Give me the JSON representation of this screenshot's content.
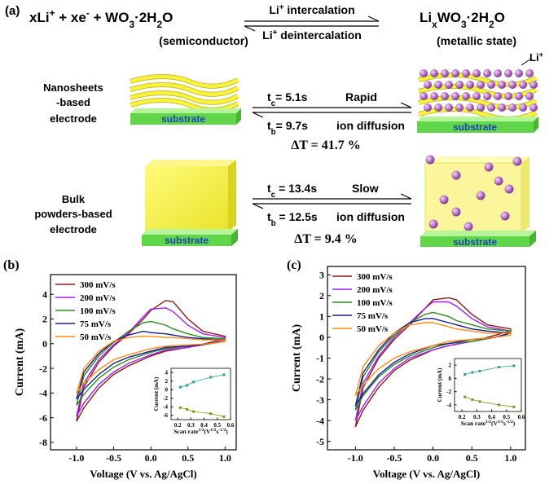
{
  "figure": {
    "panel_a": {
      "label": "(a)",
      "lhs": [
        "xLi",
        "+",
        " + xe",
        "-",
        " + WO",
        "3",
        "·2H",
        "2",
        "O"
      ],
      "lhs_note": "(semiconductor)",
      "forward": [
        "Li",
        "+",
        " intercalation"
      ],
      "backward": [
        "Li",
        "+",
        " deintercalation"
      ],
      "rhs": [
        "Li",
        "x",
        "WO",
        "3",
        "·2H",
        "2",
        "O"
      ],
      "rhs_note": "(metallic state)",
      "ion": [
        "Li",
        "+"
      ],
      "nanosheets": {
        "electrode": [
          "Nanosheets",
          "-based",
          "electrode"
        ],
        "substrate_left": "substrate",
        "substrate_right": "substrate",
        "tc": [
          "t",
          "c",
          "= 5.1s"
        ],
        "speed": "Rapid",
        "tb": [
          "t",
          "b",
          "= 9.7s"
        ],
        "diffusion": "ion diffusion",
        "delta": "ΔT = 41.7 %"
      },
      "bulk": {
        "electrode": [
          "Bulk",
          "powders-based",
          "electrode"
        ],
        "substrate_left": "substrate",
        "substrate_right": "substrate",
        "tc": [
          "t",
          "c",
          " = 13.4s"
        ],
        "speed": "Slow",
        "tb": [
          "t",
          "b",
          " = 12.5s"
        ],
        "diffusion": "ion diffusion",
        "delta": "ΔT = 9.4 %"
      }
    }
  },
  "chart_data": [
    {
      "type": "line",
      "panel": "(b)",
      "xlabel": "Voltage (V vs. Ag/AgCl)",
      "ylabel": "Current  (mA)",
      "xlim": [
        -1.35,
        1.15
      ],
      "ylim": [
        -8.6,
        5.6
      ],
      "xticks": [
        {
          "value": -1,
          "label": "-1.0"
        },
        {
          "value": -0.5,
          "label": "-0.5"
        },
        {
          "value": 0,
          "label": "0.0"
        },
        {
          "value": 0.5,
          "label": "0.5"
        },
        {
          "value": 1,
          "label": "1.0"
        }
      ],
      "yticks": [
        -8,
        -6,
        -4,
        -2,
        0,
        2,
        4
      ],
      "x": [
        -1,
        -0.9,
        -0.7,
        -0.5,
        -0.3,
        -0.1,
        0,
        0.2,
        0.3,
        0.5,
        0.7,
        1,
        1,
        0.8,
        0.5,
        0.2,
        0,
        -0.3,
        -0.5,
        -0.7,
        -0.9,
        -1
      ],
      "series": [
        {
          "name": "300 mV/s",
          "color": "#8b1a1a",
          "values": [
            -6.3,
            -3.5,
            -1.5,
            -0.2,
            0.8,
            2.0,
            2.7,
            3.5,
            3.4,
            2.0,
            1.0,
            0.6,
            0.4,
            0.1,
            -0.3,
            -0.6,
            -1.0,
            -1.8,
            -2.5,
            -3.6,
            -5.2,
            -6.3
          ]
        },
        {
          "name": "200 mV/s",
          "color": "#a020f0",
          "values": [
            -5.9,
            -3.2,
            -1.3,
            -0.1,
            0.9,
            2.2,
            2.8,
            2.9,
            2.6,
            1.5,
            0.8,
            0.5,
            0.3,
            0.0,
            -0.3,
            -0.5,
            -0.9,
            -1.6,
            -2.3,
            -3.3,
            -4.8,
            -5.9
          ]
        },
        {
          "name": "100 mV/s",
          "color": "#2e8b22",
          "values": [
            -5.0,
            -2.6,
            -1.0,
            0.1,
            1.0,
            1.7,
            1.8,
            1.5,
            1.2,
            0.8,
            0.5,
            0.4,
            0.2,
            0.0,
            -0.2,
            -0.4,
            -0.7,
            -1.3,
            -1.9,
            -2.8,
            -4.1,
            -5.0
          ]
        },
        {
          "name": "75 mV/s",
          "color": "#1a1a8b",
          "values": [
            -4.5,
            -2.3,
            -0.8,
            0.2,
            0.7,
            1.0,
            0.9,
            0.8,
            0.7,
            0.5,
            0.4,
            0.3,
            0.2,
            0.0,
            -0.2,
            -0.3,
            -0.6,
            -1.1,
            -1.6,
            -2.5,
            -3.7,
            -4.5
          ]
        },
        {
          "name": "50 mV/s",
          "color": "#ff8c1a",
          "values": [
            -4.0,
            -2.0,
            -0.6,
            0.2,
            0.5,
            0.6,
            0.6,
            0.5,
            0.5,
            0.4,
            0.3,
            0.3,
            0.2,
            0.0,
            -0.1,
            -0.2,
            -0.4,
            -0.9,
            -1.3,
            -2.1,
            -3.2,
            -4.0
          ]
        }
      ],
      "inset": {
        "type": "line",
        "xlabel": [
          "Scan rate",
          "1/2",
          "(V",
          "1/2",
          "s",
          "-1/2",
          ")"
        ],
        "ylabel": "Current (mA)",
        "xlim": [
          0.15,
          0.6
        ],
        "ylim": [
          -7,
          5
        ],
        "xticks": [
          0.2,
          0.3,
          0.4,
          0.5,
          0.6
        ],
        "yticks": [
          -6,
          -4,
          -2,
          0,
          2,
          4
        ],
        "markers": true,
        "x": [
          0.22,
          0.27,
          0.32,
          0.45,
          0.55
        ],
        "series": [
          {
            "color": "#2a9d8f",
            "values": [
              0.6,
              1.0,
              1.8,
              2.9,
              3.5
            ]
          },
          {
            "color": "#8b8b1a",
            "values": [
              -4.2,
              -4.6,
              -5.1,
              -5.6,
              -6.3
            ]
          }
        ]
      }
    },
    {
      "type": "line",
      "panel": "(c)",
      "xlabel": "Voltage (V vs. Ag/AgCl)",
      "ylabel": "Current  (mA)",
      "xlim": [
        -1.36,
        1.19
      ],
      "ylim": [
        -5.4,
        3.4
      ],
      "xticks": [
        {
          "value": -1,
          "label": "-1.0"
        },
        {
          "value": -0.5,
          "label": "-0.5"
        },
        {
          "value": 0,
          "label": "0.0"
        },
        {
          "value": 0.5,
          "label": "0.5"
        },
        {
          "value": 1,
          "label": "1.0"
        }
      ],
      "yticks": [
        -5,
        -4,
        -3,
        -2,
        -1,
        0,
        1,
        2,
        3
      ],
      "x": [
        -1,
        -0.9,
        -0.7,
        -0.5,
        -0.3,
        -0.1,
        0,
        0.2,
        0.3,
        0.5,
        0.7,
        1,
        1,
        0.8,
        0.5,
        0.2,
        0,
        -0.3,
        -0.5,
        -0.7,
        -0.9,
        -1
      ],
      "series": [
        {
          "name": "300 mV/s",
          "color": "#8b1a1a",
          "values": [
            -4.3,
            -2.4,
            -1.0,
            -0.1,
            0.6,
            1.4,
            1.8,
            1.9,
            1.8,
            1.1,
            0.6,
            0.4,
            0.3,
            0.1,
            -0.2,
            -0.4,
            -0.6,
            -1.1,
            -1.6,
            -2.4,
            -3.5,
            -4.3
          ]
        },
        {
          "name": "200 mV/s",
          "color": "#a020f0",
          "values": [
            -4.0,
            -2.2,
            -0.9,
            0.0,
            0.7,
            1.4,
            1.7,
            1.7,
            1.5,
            0.9,
            0.5,
            0.3,
            0.2,
            0.0,
            -0.2,
            -0.4,
            -0.6,
            -1.0,
            -1.5,
            -2.2,
            -3.3,
            -4.0
          ]
        },
        {
          "name": "100 mV/s",
          "color": "#2e8b22",
          "values": [
            -3.5,
            -1.9,
            -0.7,
            0.1,
            0.7,
            1.1,
            1.2,
            1.0,
            0.8,
            0.6,
            0.4,
            0.3,
            0.2,
            0.0,
            -0.2,
            -0.3,
            -0.5,
            -0.9,
            -1.3,
            -1.9,
            -2.8,
            -3.5
          ]
        },
        {
          "name": "75 mV/s",
          "color": "#1a1a8b",
          "values": [
            -3.3,
            -1.7,
            -0.6,
            0.2,
            0.7,
            0.9,
            0.9,
            0.7,
            0.6,
            0.4,
            0.3,
            0.2,
            0.2,
            0.0,
            -0.1,
            -0.3,
            -0.4,
            -0.8,
            -1.2,
            -1.8,
            -2.7,
            -3.3
          ]
        },
        {
          "name": "50 mV/s",
          "color": "#ff8c1a",
          "values": [
            -2.8,
            -1.4,
            -0.4,
            0.2,
            0.6,
            0.7,
            0.7,
            0.5,
            0.4,
            0.3,
            0.2,
            0.2,
            0.1,
            0.0,
            -0.1,
            -0.2,
            -0.4,
            -0.7,
            -1.0,
            -1.5,
            -2.3,
            -2.8
          ]
        }
      ],
      "inset": {
        "type": "line",
        "xlabel": [
          "Scan rate",
          "1/2",
          "(V",
          "1/2",
          "s",
          "-1/2",
          ")"
        ],
        "ylabel": "Current (mA)",
        "xlim": [
          0.15,
          0.6
        ],
        "ylim": [
          -5,
          3
        ],
        "xticks": [
          0.2,
          0.3,
          0.4,
          0.5,
          0.6
        ],
        "yticks": [
          -4,
          -2,
          0,
          2
        ],
        "markers": true,
        "x": [
          0.22,
          0.27,
          0.32,
          0.45,
          0.55
        ],
        "series": [
          {
            "color": "#2a9d8f",
            "values": [
              0.6,
              0.9,
              1.1,
              1.7,
              1.9
            ]
          },
          {
            "color": "#8b8b1a",
            "values": [
              -2.8,
              -3.2,
              -3.5,
              -4.0,
              -4.3
            ]
          }
        ]
      }
    }
  ]
}
